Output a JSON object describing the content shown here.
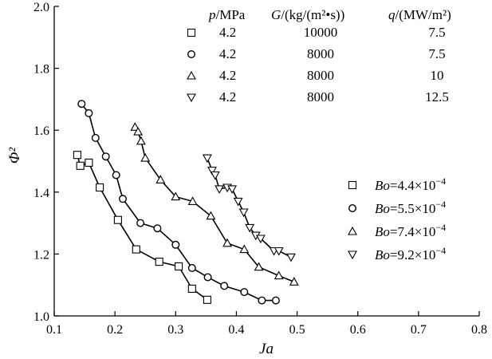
{
  "chart_data": {
    "type": "scatter",
    "xlabel": "Ja",
    "ylabel": "Φ²",
    "xlim": [
      0.1,
      0.8
    ],
    "ylim": [
      1.0,
      2.0
    ],
    "xticks": [
      "0.1",
      "0.2",
      "0.3",
      "0.4",
      "0.5",
      "0.6",
      "0.7",
      "0.8"
    ],
    "yticks": [
      "1.0",
      "1.2",
      "1.4",
      "1.6",
      "1.8",
      "2.0"
    ],
    "grid": false,
    "legend_position": "bottom-right",
    "table": {
      "headers": {
        "p": "p",
        "p_unit": "/MPa",
        "G": "G",
        "G_unit": "/(kg/(m²•s))",
        "q": "q",
        "q_unit": "/(MW/m²)"
      },
      "rows": [
        {
          "marker": "square",
          "p": "4.2",
          "G": "10000",
          "q": "7.5"
        },
        {
          "marker": "circle",
          "p": "4.2",
          "G": "8000",
          "q": "7.5"
        },
        {
          "marker": "triangle-up",
          "p": "4.2",
          "G": "8000",
          "q": "10"
        },
        {
          "marker": "triangle-down",
          "p": "4.2",
          "G": "8000",
          "q": "12.5"
        }
      ]
    },
    "series": [
      {
        "name": "Bo=4.4×10⁻⁴",
        "label_prefix": "Bo",
        "label_value": "=4.4×10",
        "label_exp": "−4",
        "marker": "square",
        "points": [
          [
            0.138,
            1.52
          ],
          [
            0.143,
            1.485
          ],
          [
            0.157,
            1.495
          ],
          [
            0.175,
            1.415
          ],
          [
            0.205,
            1.31
          ],
          [
            0.235,
            1.215
          ],
          [
            0.273,
            1.175
          ],
          [
            0.305,
            1.16
          ],
          [
            0.327,
            1.088
          ],
          [
            0.352,
            1.052
          ]
        ]
      },
      {
        "name": "Bo=5.5×10⁻⁴",
        "label_prefix": "Bo",
        "label_value": "=5.5×10",
        "label_exp": "−4",
        "marker": "circle",
        "points": [
          [
            0.145,
            1.685
          ],
          [
            0.157,
            1.655
          ],
          [
            0.168,
            1.575
          ],
          [
            0.185,
            1.515
          ],
          [
            0.202,
            1.455
          ],
          [
            0.213,
            1.378
          ],
          [
            0.242,
            1.3
          ],
          [
            0.27,
            1.283
          ],
          [
            0.3,
            1.23
          ],
          [
            0.327,
            1.155
          ],
          [
            0.353,
            1.125
          ],
          [
            0.38,
            1.097
          ],
          [
            0.413,
            1.077
          ],
          [
            0.442,
            1.05
          ],
          [
            0.465,
            1.05
          ]
        ]
      },
      {
        "name": "Bo=7.4×10⁻⁴",
        "label_prefix": "Bo",
        "label_value": "=7.4×10",
        "label_exp": "−4",
        "marker": "triangle-up",
        "points": [
          [
            0.233,
            1.61
          ],
          [
            0.238,
            1.595
          ],
          [
            0.243,
            1.565
          ],
          [
            0.25,
            1.51
          ],
          [
            0.275,
            1.44
          ],
          [
            0.3,
            1.385
          ],
          [
            0.328,
            1.37
          ],
          [
            0.358,
            1.323
          ],
          [
            0.385,
            1.235
          ],
          [
            0.413,
            1.215
          ],
          [
            0.437,
            1.158
          ],
          [
            0.47,
            1.13
          ],
          [
            0.495,
            1.11
          ]
        ]
      },
      {
        "name": "Bo=9.2×10⁻⁴",
        "label_prefix": "Bo",
        "label_value": "=9.2×10",
        "label_exp": "−4",
        "marker": "triangle-down",
        "points": [
          [
            0.352,
            1.51
          ],
          [
            0.36,
            1.47
          ],
          [
            0.365,
            1.455
          ],
          [
            0.372,
            1.41
          ],
          [
            0.385,
            1.415
          ],
          [
            0.393,
            1.41
          ],
          [
            0.403,
            1.37
          ],
          [
            0.412,
            1.335
          ],
          [
            0.422,
            1.285
          ],
          [
            0.432,
            1.26
          ],
          [
            0.44,
            1.25
          ],
          [
            0.462,
            1.21
          ],
          [
            0.47,
            1.21
          ],
          [
            0.49,
            1.19
          ]
        ]
      }
    ]
  }
}
